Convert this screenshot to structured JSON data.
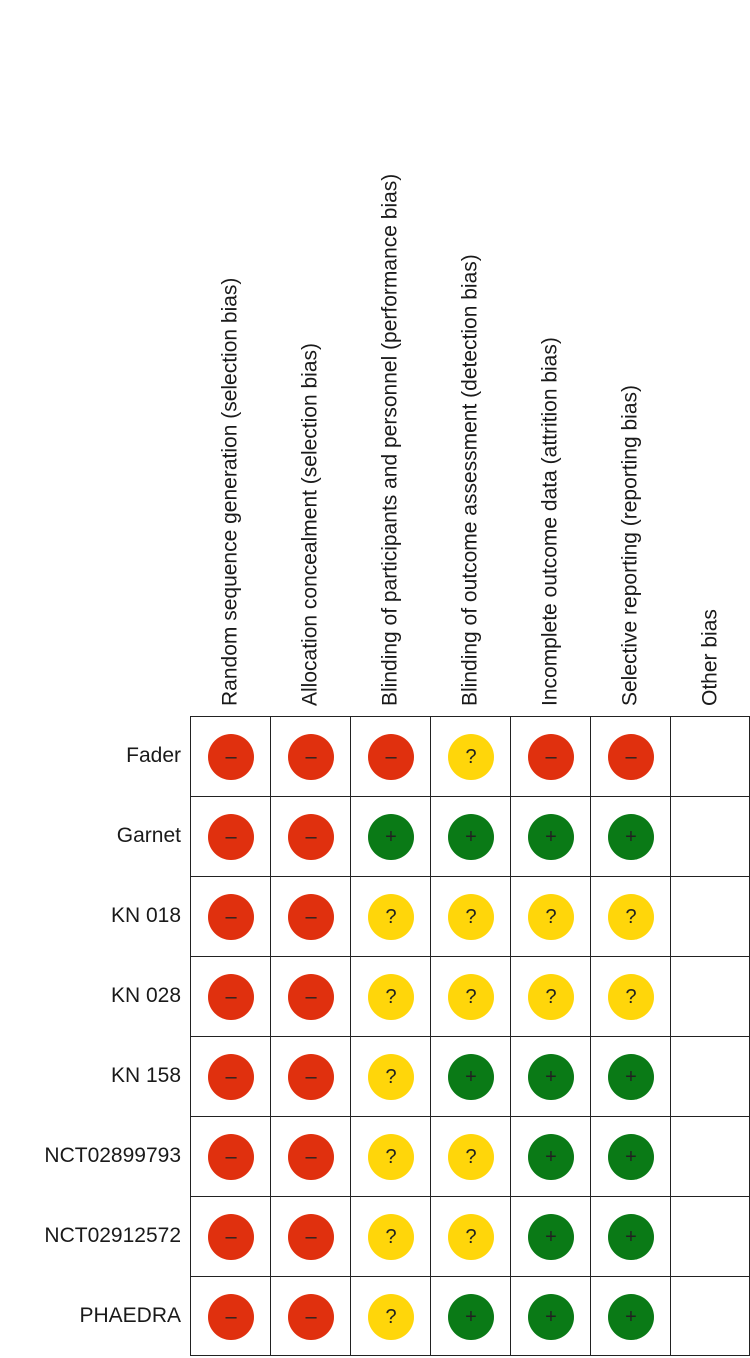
{
  "columns": [
    "Random sequence generation (selection bias)",
    "Allocation concealment (selection bias)",
    "Blinding of participants and personnel (performance bias)",
    "Blinding of outcome assessment (detection bias)",
    "Incomplete outcome data (attrition bias)",
    "Selective reporting (reporting bias)",
    "Other bias"
  ],
  "rows": [
    {
      "study": "Fader",
      "ratings": [
        "high",
        "high",
        "high",
        "unclear",
        "high",
        "high",
        "none"
      ]
    },
    {
      "study": "Garnet",
      "ratings": [
        "high",
        "high",
        "low",
        "low",
        "low",
        "low",
        "none"
      ]
    },
    {
      "study": "KN 018",
      "ratings": [
        "high",
        "high",
        "unclear",
        "unclear",
        "unclear",
        "unclear",
        "none"
      ]
    },
    {
      "study": "KN 028",
      "ratings": [
        "high",
        "high",
        "unclear",
        "unclear",
        "unclear",
        "unclear",
        "none"
      ]
    },
    {
      "study": "KN 158",
      "ratings": [
        "high",
        "high",
        "unclear",
        "low",
        "low",
        "low",
        "none"
      ]
    },
    {
      "study": "NCT02899793",
      "ratings": [
        "high",
        "high",
        "unclear",
        "unclear",
        "low",
        "low",
        "none"
      ]
    },
    {
      "study": "NCT02912572",
      "ratings": [
        "high",
        "high",
        "unclear",
        "unclear",
        "low",
        "low",
        "none"
      ]
    },
    {
      "study": "PHAEDRA",
      "ratings": [
        "high",
        "high",
        "unclear",
        "low",
        "low",
        "low",
        "none"
      ]
    }
  ],
  "rating_styles": {
    "high": {
      "symbol": "–",
      "color": "#e0300e",
      "icon": "minus-icon"
    },
    "low": {
      "symbol": "+",
      "color": "#0a7a16",
      "icon": "plus-icon"
    },
    "unclear": {
      "symbol": "?",
      "color": "#ffd60a",
      "icon": "question-icon"
    }
  }
}
